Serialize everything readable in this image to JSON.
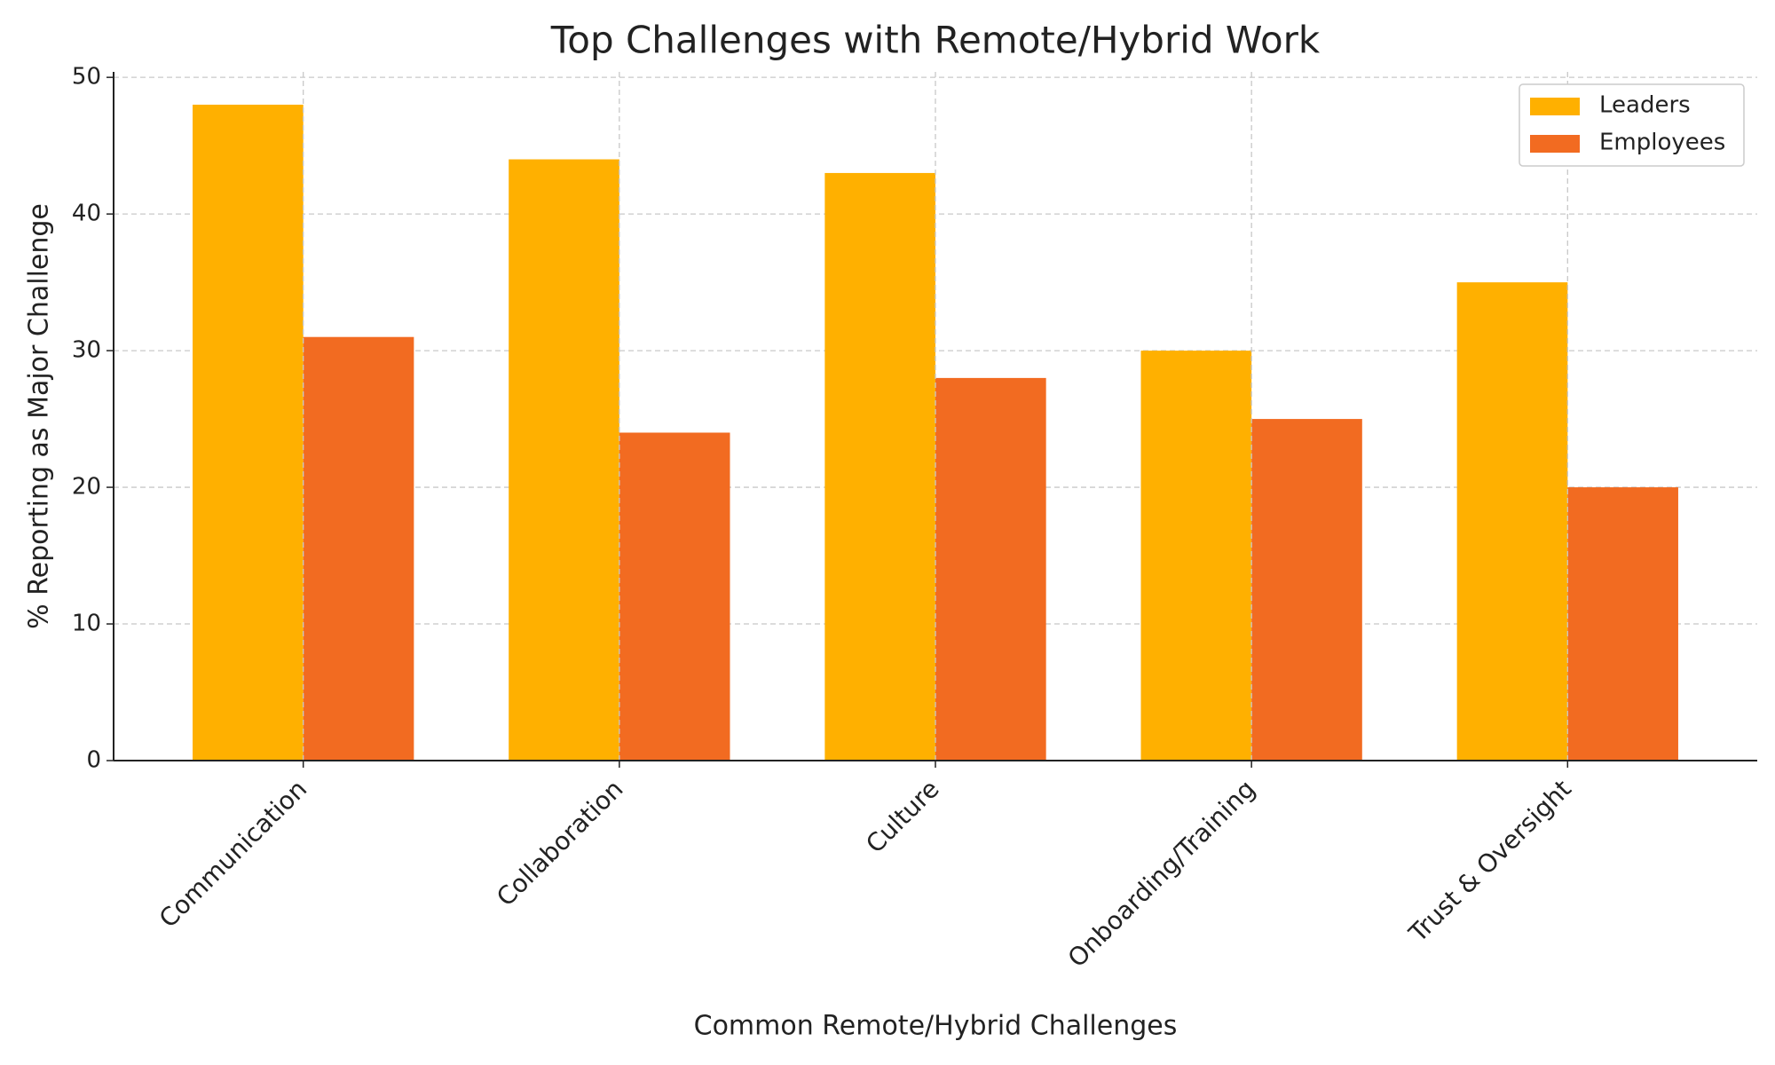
{
  "chart_data": {
    "type": "bar",
    "title": "Top Challenges with Remote/Hybrid Work",
    "x_label": "Common Remote/Hybrid Challenges",
    "y_label": "% Reporting as Major Challenge",
    "categories": [
      "Communication",
      "Collaboration",
      "Culture",
      "Onboarding/Training",
      "Trust & Oversight"
    ],
    "series": [
      {
        "name": "Leaders",
        "color": "#FFB000",
        "values": [
          48,
          44,
          43,
          30,
          35
        ]
      },
      {
        "name": "Employees",
        "color": "#F26B21",
        "values": [
          31,
          24,
          28,
          25,
          20
        ]
      }
    ],
    "ylim": [
      0,
      50.4
    ],
    "yticks": [
      0,
      10,
      20,
      30,
      40,
      50
    ],
    "grid": true,
    "legend": "upper right"
  }
}
